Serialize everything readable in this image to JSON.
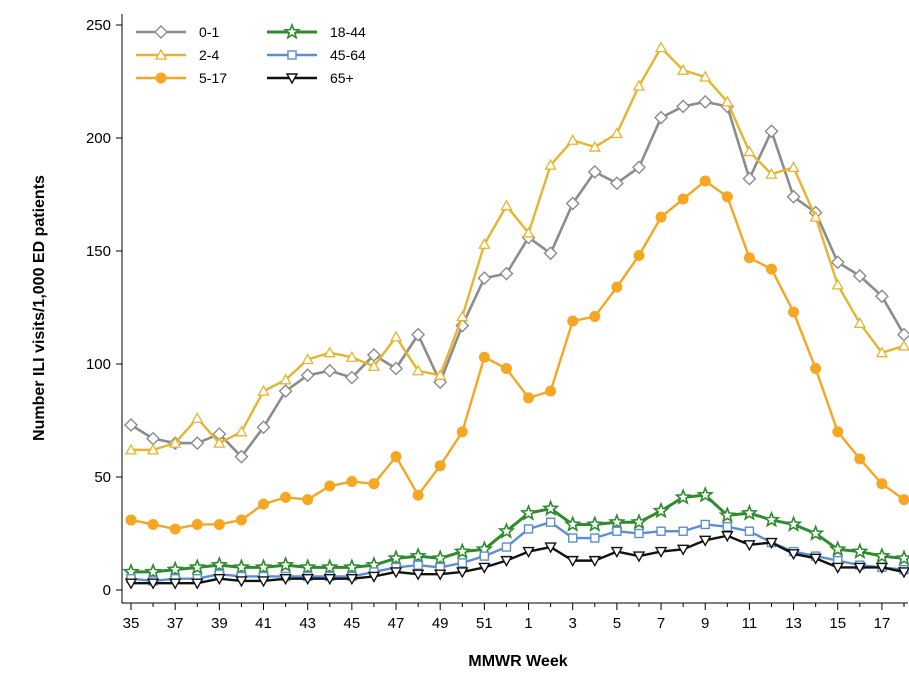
{
  "chart_data": {
    "type": "line",
    "title": "",
    "xlabel": "MMWR Week",
    "ylabel": "Number ILI visits/1,000 ED patients",
    "ylim": [
      0,
      250
    ],
    "yticks": [
      0,
      50,
      100,
      150,
      200,
      250
    ],
    "x": [
      "35",
      "36",
      "37",
      "38",
      "39",
      "40",
      "41",
      "42",
      "43",
      "44",
      "45",
      "46",
      "47",
      "48",
      "49",
      "50",
      "51",
      "52",
      "1",
      "2",
      "3",
      "4",
      "5",
      "6",
      "7",
      "8",
      "9",
      "10",
      "11",
      "12",
      "13",
      "14",
      "15",
      "16",
      "17",
      "18"
    ],
    "xtick_labels": [
      "35",
      "37",
      "39",
      "41",
      "43",
      "45",
      "47",
      "49",
      "51",
      "1",
      "3",
      "5",
      "7",
      "9",
      "11",
      "13",
      "15",
      "17"
    ],
    "grid": false,
    "legend_position": "top-left",
    "series": [
      {
        "name": "0-1",
        "color": "#8c8c8c",
        "marker": "diamond",
        "values": [
          73,
          67,
          65,
          65,
          69,
          59,
          72,
          88,
          95,
          97,
          94,
          104,
          98,
          113,
          92,
          117,
          138,
          140,
          156,
          149,
          171,
          185,
          180,
          187,
          209,
          214,
          216,
          214,
          182,
          203,
          174,
          167,
          145,
          139,
          130,
          113
        ]
      },
      {
        "name": "2-4",
        "color": "#e6b52e",
        "marker": "triangle",
        "values": [
          62,
          62,
          65,
          76,
          65,
          70,
          88,
          93,
          102,
          105,
          103,
          99,
          112,
          97,
          95,
          121,
          153,
          170,
          158,
          188,
          199,
          196,
          202,
          223,
          240,
          230,
          227,
          216,
          194,
          184,
          187,
          165,
          135,
          118,
          105,
          108
        ]
      },
      {
        "name": "5-17",
        "color": "#f5a623",
        "marker": "circle",
        "values": [
          31,
          29,
          27,
          29,
          29,
          31,
          38,
          41,
          40,
          46,
          48,
          47,
          59,
          42,
          55,
          70,
          103,
          98,
          85,
          88,
          119,
          121,
          134,
          148,
          165,
          173,
          181,
          174,
          147,
          142,
          123,
          98,
          70,
          58,
          47,
          40
        ]
      },
      {
        "name": "18-44",
        "color": "#2e8b2e",
        "marker": "star",
        "values": [
          8,
          8,
          9,
          10,
          11,
          10,
          10,
          11,
          10,
          10,
          10,
          11,
          14,
          15,
          14,
          17,
          18,
          26,
          34,
          36,
          29,
          29,
          30,
          30,
          35,
          41,
          42,
          33,
          34,
          31,
          29,
          25,
          18,
          17,
          15,
          14
        ]
      },
      {
        "name": "45-64",
        "color": "#5b8fd1",
        "marker": "square",
        "values": [
          5,
          4,
          5,
          5,
          7,
          6,
          6,
          6,
          6,
          6,
          6,
          8,
          10,
          11,
          10,
          12,
          15,
          19,
          27,
          30,
          23,
          23,
          26,
          25,
          26,
          26,
          29,
          28,
          26,
          21,
          17,
          15,
          13,
          11,
          10,
          9
        ]
      },
      {
        "name": "65+",
        "color": "#111111",
        "marker": "triangle-down",
        "values": [
          3,
          3,
          3,
          3,
          5,
          4,
          4,
          5,
          5,
          5,
          5,
          6,
          8,
          7,
          7,
          8,
          10,
          13,
          17,
          19,
          13,
          13,
          17,
          15,
          17,
          18,
          22,
          24,
          20,
          21,
          16,
          14,
          10,
          10,
          10,
          8
        ]
      }
    ]
  }
}
